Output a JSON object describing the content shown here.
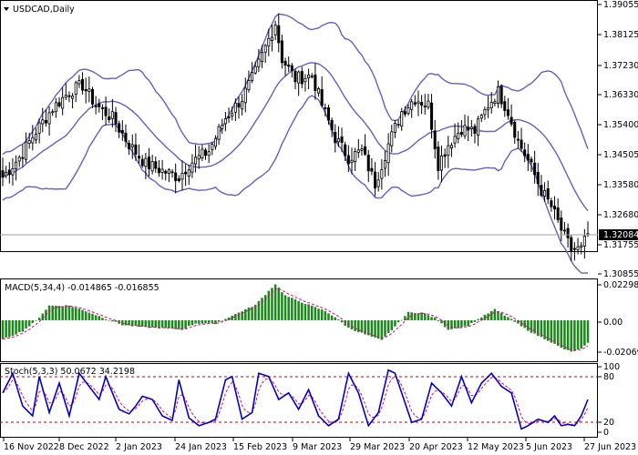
{
  "chart_data": [
    {
      "type": "candlestick",
      "title": "USDCAD,Daily",
      "symbol": "USDCAD",
      "timeframe": "Daily",
      "ylim": [
        1.3079,
        1.391
      ],
      "y_ticks": [
        "1.39055",
        "1.38125",
        "1.37230",
        "1.36330",
        "1.35400",
        "1.34505",
        "1.33580",
        "1.32680",
        "1.31755",
        "1.30855"
      ],
      "current_price": "1.32084",
      "x_ticks": [
        "16 Nov 2022",
        "8 Dec 2022",
        "2 Jan 2023",
        "24 Jan 2023",
        "15 Feb 2023",
        "9 Mar 2023",
        "29 Mar 2023",
        "20 Apr 2023",
        "12 May 2023",
        "5 Jun 2023",
        "27 Jun 2023"
      ],
      "close_anchors": [
        [
          0,
          1.338
        ],
        [
          5,
          1.344
        ],
        [
          10,
          1.352
        ],
        [
          15,
          1.359
        ],
        [
          20,
          1.364
        ],
        [
          24,
          1.366
        ],
        [
          28,
          1.36
        ],
        [
          33,
          1.356
        ],
        [
          38,
          1.348
        ],
        [
          43,
          1.342
        ],
        [
          48,
          1.34
        ],
        [
          53,
          1.338
        ],
        [
          56,
          1.342
        ],
        [
          62,
          1.346
        ],
        [
          67,
          1.356
        ],
        [
          72,
          1.362
        ],
        [
          76,
          1.37
        ],
        [
          80,
          1.38
        ],
        [
          82,
          1.385
        ],
        [
          84,
          1.374
        ],
        [
          88,
          1.368
        ],
        [
          93,
          1.369
        ],
        [
          96,
          1.36
        ],
        [
          100,
          1.35
        ],
        [
          104,
          1.344
        ],
        [
          108,
          1.346
        ],
        [
          112,
          1.336
        ],
        [
          116,
          1.348
        ],
        [
          120,
          1.358
        ],
        [
          124,
          1.362
        ],
        [
          128,
          1.36
        ],
        [
          131,
          1.342
        ],
        [
          134,
          1.348
        ],
        [
          138,
          1.353
        ],
        [
          142,
          1.352
        ],
        [
          146,
          1.36
        ],
        [
          149,
          1.364
        ],
        [
          152,
          1.358
        ],
        [
          155,
          1.349
        ],
        [
          159,
          1.341
        ],
        [
          162,
          1.334
        ],
        [
          165,
          1.329
        ],
        [
          168,
          1.322
        ],
        [
          171,
          1.316
        ],
        [
          174,
          1.316
        ],
        [
          176,
          1.3208
        ]
      ],
      "bollinger_bands": {
        "period": 20,
        "deviations": 2
      },
      "colors": {
        "bull": "#ffffff",
        "bear": "#000000",
        "band": "#6a5acd",
        "grid": "#b0b0b0"
      }
    },
    {
      "type": "histogram",
      "label": "MACD(5,34,4) -0.014865 -0.016855",
      "macd_value": "-0.014865",
      "signal_value": "-0.016855",
      "y_ticks": [
        "0.022988",
        "0.00",
        "-0.020691"
      ],
      "ylim": [
        -0.0235,
        0.0255
      ],
      "histogram_anchors": [
        [
          0,
          -0.0125
        ],
        [
          6,
          -0.007
        ],
        [
          10,
          -0.0005
        ],
        [
          14,
          0.0095
        ],
        [
          20,
          0.0095
        ],
        [
          25,
          0.006
        ],
        [
          31,
          0.001
        ],
        [
          36,
          -0.003
        ],
        [
          42,
          -0.0045
        ],
        [
          48,
          -0.005
        ],
        [
          54,
          -0.006
        ],
        [
          58,
          -0.002
        ],
        [
          64,
          -0.002
        ],
        [
          70,
          0.004
        ],
        [
          76,
          0.01
        ],
        [
          80,
          0.019
        ],
        [
          82,
          0.0235
        ],
        [
          85,
          0.016
        ],
        [
          92,
          0.01
        ],
        [
          97,
          0.006
        ],
        [
          100,
          0.002
        ],
        [
          104,
          -0.005
        ],
        [
          110,
          -0.01
        ],
        [
          114,
          -0.013
        ],
        [
          118,
          -0.004
        ],
        [
          122,
          0.005
        ],
        [
          126,
          0.005
        ],
        [
          130,
          0.0015
        ],
        [
          134,
          -0.006
        ],
        [
          140,
          -0.0035
        ],
        [
          144,
          0.002
        ],
        [
          148,
          0.007
        ],
        [
          152,
          0.002
        ],
        [
          156,
          -0.004
        ],
        [
          160,
          -0.009
        ],
        [
          164,
          -0.013
        ],
        [
          168,
          -0.018
        ],
        [
          171,
          -0.0205
        ],
        [
          174,
          -0.0185
        ],
        [
          176,
          -0.015
        ]
      ],
      "colors": {
        "histogram": "#1a8a1a",
        "signal": "#e0008c"
      }
    },
    {
      "type": "line",
      "label": "Stoch(5,3,3) 50.0672 34.2198",
      "k_value": "50.0672",
      "d_value": "34.2198",
      "y_ticks": [
        "100",
        "80",
        "20",
        "0"
      ],
      "ylim": [
        0,
        100
      ],
      "levels": [
        80,
        20
      ],
      "k_anchors": [
        [
          0,
          60
        ],
        [
          3,
          90
        ],
        [
          6,
          40
        ],
        [
          9,
          25
        ],
        [
          11,
          85
        ],
        [
          14,
          30
        ],
        [
          17,
          75
        ],
        [
          20,
          25
        ],
        [
          23,
          90
        ],
        [
          26,
          70
        ],
        [
          29,
          50
        ],
        [
          31,
          85
        ],
        [
          35,
          35
        ],
        [
          38,
          28
        ],
        [
          40,
          40
        ],
        [
          42,
          55
        ],
        [
          45,
          50
        ],
        [
          48,
          25
        ],
        [
          51,
          18
        ],
        [
          53,
          80
        ],
        [
          56,
          22
        ],
        [
          59,
          10
        ],
        [
          62,
          15
        ],
        [
          64,
          20
        ],
        [
          67,
          80
        ],
        [
          69,
          85
        ],
        [
          72,
          20
        ],
        [
          75,
          30
        ],
        [
          77,
          90
        ],
        [
          80,
          85
        ],
        [
          83,
          50
        ],
        [
          86,
          60
        ],
        [
          89,
          35
        ],
        [
          92,
          65
        ],
        [
          95,
          25
        ],
        [
          98,
          10
        ],
        [
          101,
          20
        ],
        [
          104,
          90
        ],
        [
          107,
          60
        ],
        [
          110,
          10
        ],
        [
          113,
          30
        ],
        [
          116,
          95
        ],
        [
          118,
          90
        ],
        [
          120,
          60
        ],
        [
          123,
          15
        ],
        [
          126,
          20
        ],
        [
          129,
          75
        ],
        [
          132,
          60
        ],
        [
          135,
          40
        ],
        [
          138,
          85
        ],
        [
          141,
          45
        ],
        [
          144,
          75
        ],
        [
          147,
          90
        ],
        [
          150,
          70
        ],
        [
          153,
          60
        ],
        [
          156,
          5
        ],
        [
          158,
          10
        ],
        [
          161,
          20
        ],
        [
          164,
          15
        ],
        [
          166,
          25
        ],
        [
          168,
          10
        ],
        [
          170,
          12
        ],
        [
          172,
          10
        ],
        [
          174,
          25
        ],
        [
          176,
          50
        ]
      ],
      "colors": {
        "k": "#0000cc",
        "d": "#e0008c",
        "level": "#cc0000"
      }
    }
  ]
}
